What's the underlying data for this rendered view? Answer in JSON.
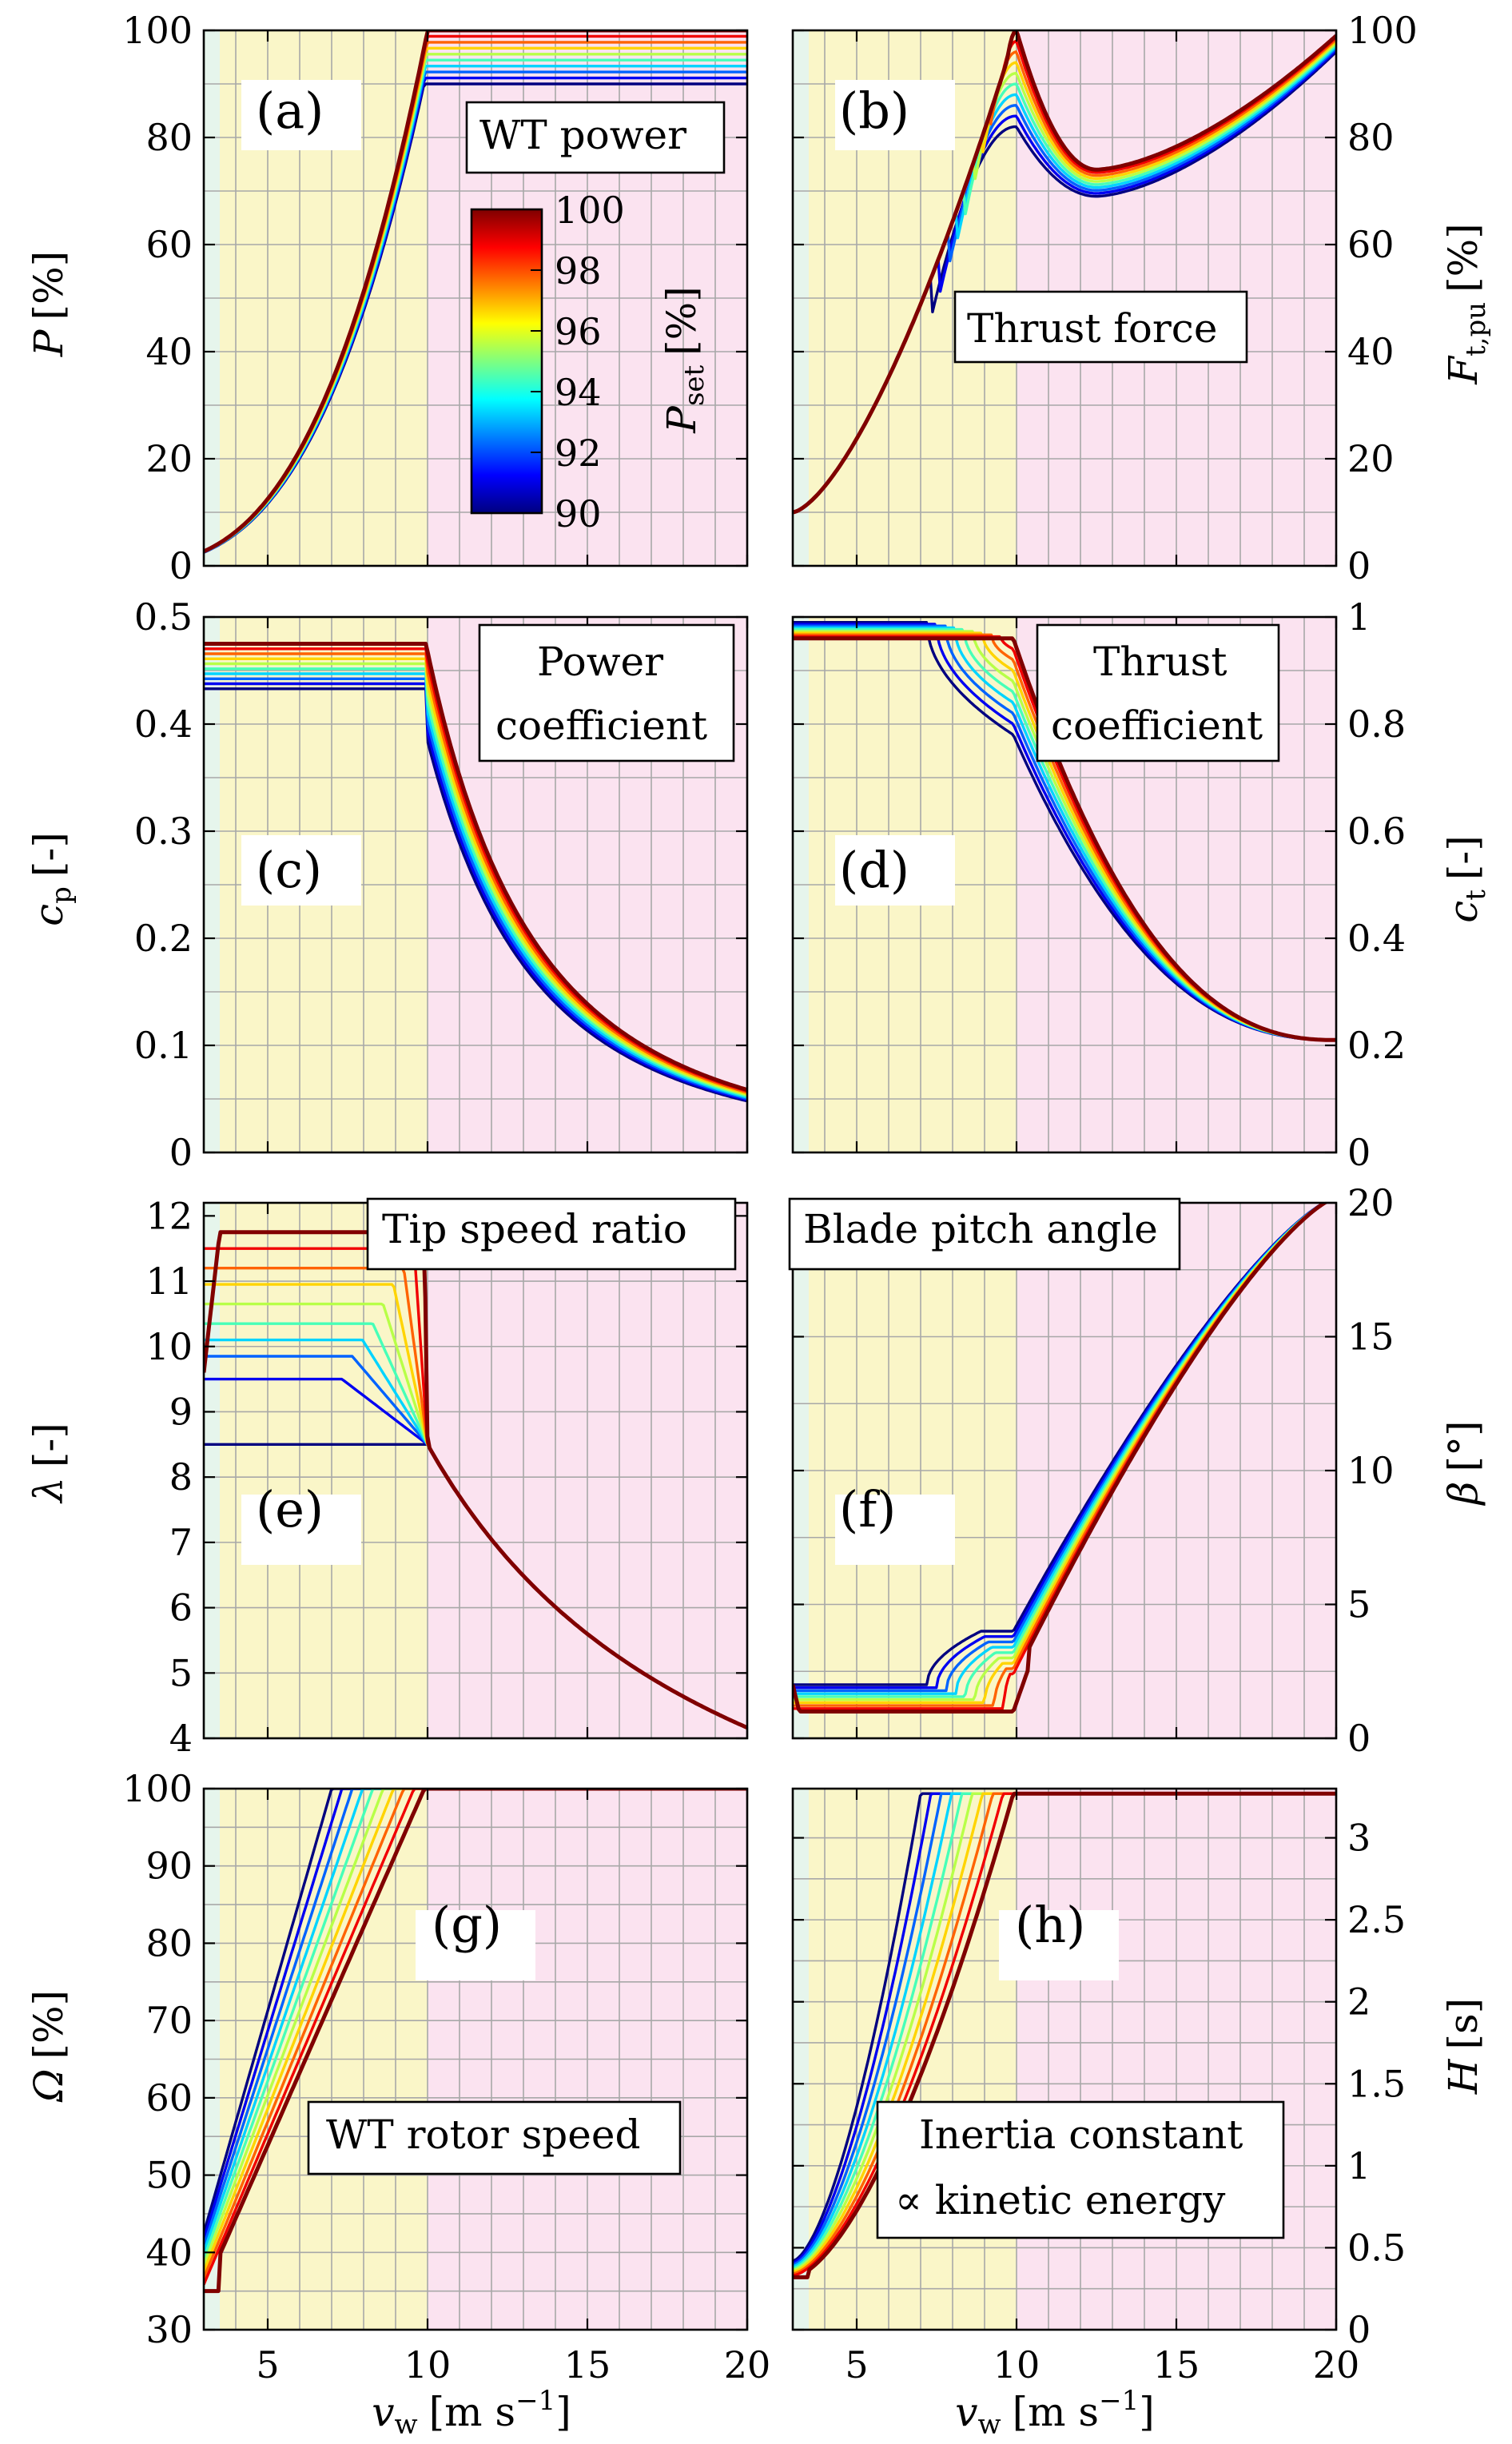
{
  "colorbar": {
    "label": "P_set [%]",
    "label_main": "P",
    "label_sub": "set",
    "label_unit": "[%]",
    "min": 90,
    "max": 100,
    "ticks": [
      "100",
      "98",
      "96",
      "94",
      "92",
      "90"
    ]
  },
  "xaxis": {
    "label": "v_w [m s^-1]",
    "label_main": "v",
    "label_sub": "w",
    "label_unit": "[m s",
    "label_exp": "−1",
    "label_close": "]",
    "ticks": [
      "5",
      "10",
      "15",
      "20"
    ]
  },
  "colors": {
    "region_low": "#e6f5ec",
    "region_mid": "#faf6c8",
    "region_high": "#fbe3f0",
    "grid": "#a8a8a8",
    "colorbar": [
      "#00007f",
      "#0000ff",
      "#007fff",
      "#00ffff",
      "#7fff7f",
      "#ffff00",
      "#ff7f00",
      "#ff0000",
      "#7f0000"
    ]
  },
  "chart_data": [
    {
      "id": "a",
      "tag": "(a)",
      "type": "line",
      "title": "WT power",
      "xlabel": "v_w [m s^-1]",
      "ylabel": "P [%]",
      "ylabel_main": "P",
      "ylabel_unit": "[%]",
      "xlim": [
        3,
        20
      ],
      "ylim": [
        0,
        100
      ],
      "yticks": [
        "0",
        "20",
        "40",
        "60",
        "80",
        "100"
      ],
      "series_param": "P_set = 90 ... 100 %",
      "regions": [
        3,
        3.5,
        10,
        20
      ],
      "curve": "P = min(P_set, 100*(v_w/10)^3)"
    },
    {
      "id": "b",
      "tag": "(b)",
      "type": "line",
      "title": "Thrust force",
      "ylabel": "F_t,pu [%]",
      "ylabel_main": "F",
      "ylabel_sub": "t,pu",
      "ylabel_unit": "[%]",
      "xlim": [
        3,
        20
      ],
      "ylim": [
        0,
        100
      ],
      "yticks": [
        "0",
        "20",
        "40",
        "60",
        "80",
        "100"
      ],
      "key_points": {
        "peak_at_10": [
          82,
          100
        ],
        "min_near_12.5": [
          69,
          74
        ],
        "end_at_20": [
          96,
          99
        ]
      }
    },
    {
      "id": "c",
      "tag": "(c)",
      "type": "line",
      "title": "Power coefficient",
      "title_lines": [
        "Power",
        "coefficient"
      ],
      "ylabel": "c_p [-]",
      "ylabel_main": "c",
      "ylabel_sub": "p",
      "ylabel_unit": "[-]",
      "xlim": [
        3,
        20
      ],
      "ylim": [
        0,
        0.5
      ],
      "yticks": [
        "0",
        "0.1",
        "0.2",
        "0.3",
        "0.4",
        "0.5"
      ],
      "plateau_range": [
        0.433,
        0.475
      ],
      "end_at_20": [
        0.052,
        0.058
      ]
    },
    {
      "id": "d",
      "tag": "(d)",
      "type": "line",
      "title": "Thrust coefficient",
      "title_lines": [
        "Thrust",
        "coefficient"
      ],
      "ylabel": "c_t [-]",
      "ylabel_main": "c",
      "ylabel_sub": "t",
      "ylabel_unit": "[-]",
      "xlim": [
        3,
        20
      ],
      "ylim": [
        0,
        1
      ],
      "yticks": [
        "0",
        "0.2",
        "0.4",
        "0.6",
        "0.8",
        "1"
      ],
      "plateau_range": [
        0.96,
        0.99
      ],
      "min_at_10": [
        0.78,
        0.96
      ],
      "end_at_20": 0.21
    },
    {
      "id": "e",
      "tag": "(e)",
      "type": "line",
      "title": "Tip speed ratio",
      "ylabel": "λ [-]",
      "ylabel_main": "λ",
      "ylabel_unit": "[-]",
      "xlim": [
        3,
        20
      ],
      "ylim": [
        4,
        12.2
      ],
      "yticks": [
        "4",
        "5",
        "6",
        "7",
        "8",
        "9",
        "10",
        "11",
        "12"
      ],
      "lambda_opt_by_pset": [
        11.75,
        11.5,
        11.2,
        10.95,
        10.65,
        10.35,
        10.1,
        9.85,
        9.5,
        8.5
      ],
      "end_at_20": 4.2
    },
    {
      "id": "f",
      "tag": "(f)",
      "type": "line",
      "title": "Blade pitch angle",
      "ylabel": "β [°]",
      "ylabel_main": "β",
      "ylabel_unit": "[°]",
      "xlim": [
        3,
        20
      ],
      "ylim": [
        0,
        20
      ],
      "yticks": [
        "0",
        "5",
        "10",
        "15",
        "20"
      ],
      "low_wind_range": [
        1,
        2
      ],
      "at_10": [
        2.2,
        4
      ],
      "end_at_20": 20.2
    },
    {
      "id": "g",
      "tag": "(g)",
      "type": "line",
      "title": "WT rotor speed",
      "ylabel": "Ω [%]",
      "ylabel_main": "Ω",
      "ylabel_unit": "[%]",
      "xlim": [
        3,
        20
      ],
      "ylim": [
        30,
        100
      ],
      "yticks": [
        "30",
        "40",
        "50",
        "60",
        "70",
        "80",
        "90",
        "100"
      ],
      "saturation_wind_speed": [
        7.0,
        9.9
      ]
    },
    {
      "id": "h",
      "tag": "(h)",
      "type": "line",
      "title": "Inertia constant ∝ kinetic energy",
      "title_lines": [
        "Inertia constant",
        "∝ kinetic energy"
      ],
      "ylabel": "H [s]",
      "ylabel_main": "H",
      "ylabel_unit": "[s]",
      "xlim": [
        3,
        20
      ],
      "ylim": [
        0,
        3.3
      ],
      "yticks": [
        "0",
        "0.5",
        "1",
        "1.5",
        "2",
        "2.5",
        "3"
      ],
      "max": 3.27
    }
  ]
}
